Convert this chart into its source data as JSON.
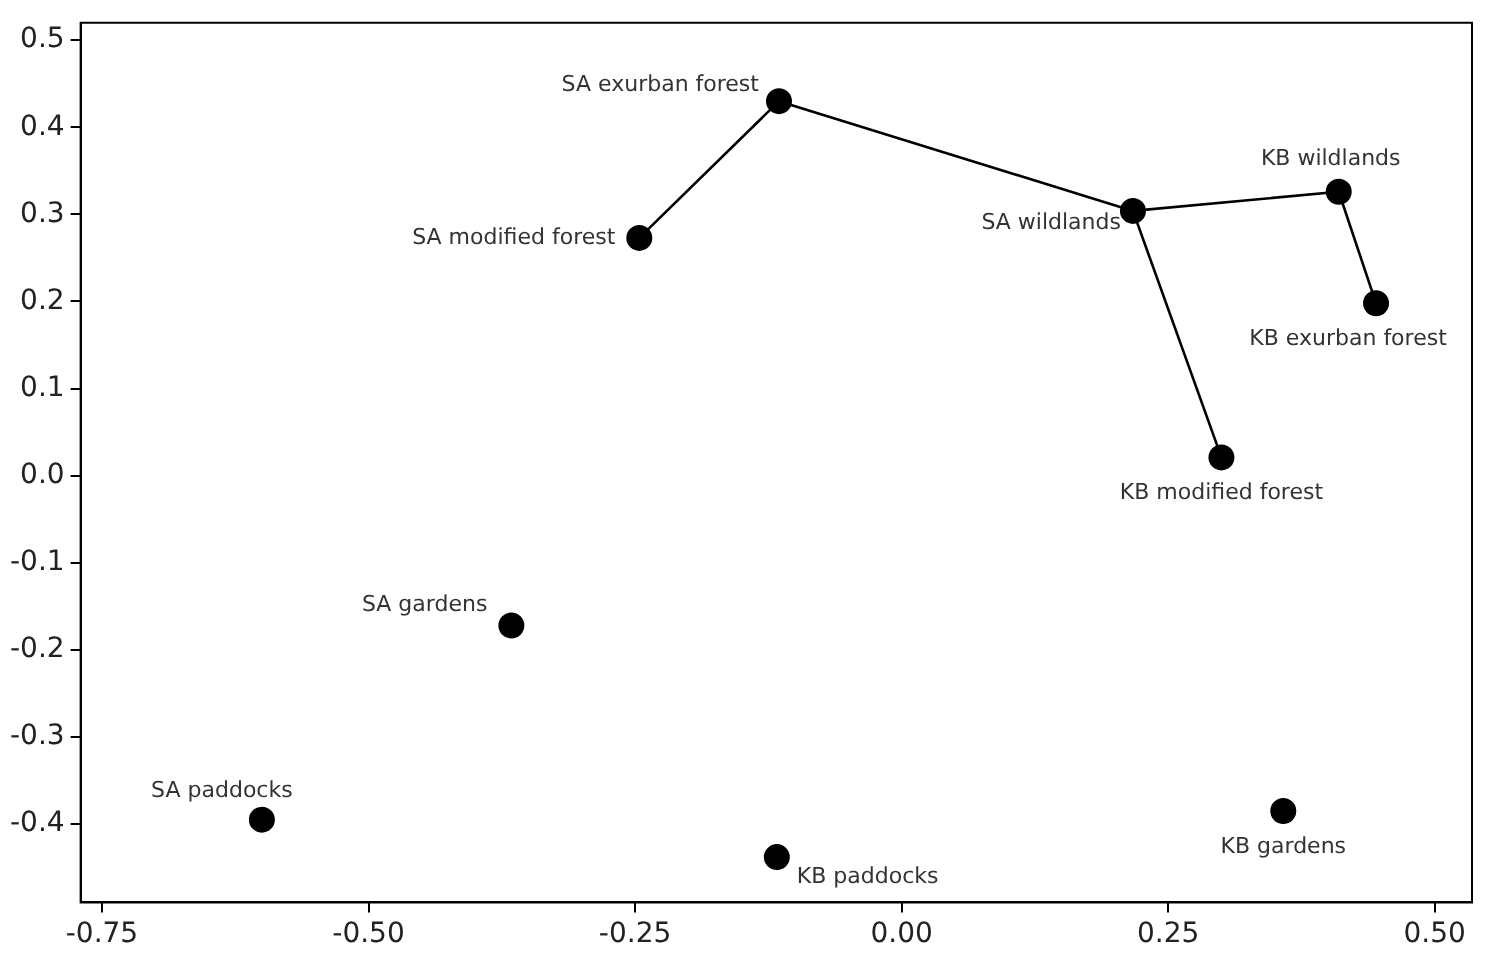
{
  "chart_data": {
    "type": "scatter",
    "xlim": [
      -0.77,
      0.535
    ],
    "ylim": [
      -0.49,
      0.52
    ],
    "xticks": [
      {
        "value": -0.75,
        "label": "-0.75"
      },
      {
        "value": -0.5,
        "label": "-0.50"
      },
      {
        "value": -0.25,
        "label": "-0.25"
      },
      {
        "value": 0,
        "label": "0.00"
      },
      {
        "value": 0.25,
        "label": "0.25"
      },
      {
        "value": 0.5,
        "label": "0.50"
      }
    ],
    "yticks": [
      {
        "value": -0.4,
        "label": "-0.4"
      },
      {
        "value": -0.3,
        "label": "-0.3"
      },
      {
        "value": -0.2,
        "label": "-0.2"
      },
      {
        "value": -0.1,
        "label": "-0.1"
      },
      {
        "value": 0,
        "label": "0.0"
      },
      {
        "value": 0.1,
        "label": "0.1"
      },
      {
        "value": 0.2,
        "label": "0.2"
      },
      {
        "value": 0.3,
        "label": "0.3"
      },
      {
        "value": 0.4,
        "label": "0.4"
      },
      {
        "value": 0.5,
        "label": "0.5"
      }
    ],
    "grid": false,
    "legend": false,
    "marker": "circle",
    "series": [
      {
        "type": "line",
        "color": "#000000",
        "marker": "none",
        "x": [
          -0.246,
          -0.115,
          0.217,
          0.41,
          0.445
        ],
        "values": [
          0.273,
          0.43,
          0.304,
          0.326,
          0.198
        ]
      },
      {
        "type": "line",
        "color": "#000000",
        "marker": "none",
        "x": [
          0.217,
          0.3
        ],
        "values": [
          0.304,
          0.021
        ]
      },
      {
        "type": "scatter",
        "color": "#000000",
        "x": [
          -0.115,
          -0.246,
          0.217,
          0.41,
          0.445,
          0.3,
          -0.366,
          -0.6,
          -0.117,
          0.358
        ],
        "values": [
          0.43,
          0.273,
          0.304,
          0.326,
          0.198,
          0.021,
          -0.172,
          -0.395,
          -0.438,
          -0.385
        ]
      }
    ],
    "annotations": [
      {
        "text": "SA exurban forest",
        "x": -0.115,
        "y": 0.43
      },
      {
        "text": "SA modified forest",
        "x": -0.246,
        "y": 0.273
      },
      {
        "text": "SA wildlands",
        "x": 0.217,
        "y": 0.304
      },
      {
        "text": "KB wildlands",
        "x": 0.41,
        "y": 0.326
      },
      {
        "text": "KB exurban forest",
        "x": 0.445,
        "y": 0.198
      },
      {
        "text": "KB modified forest",
        "x": 0.3,
        "y": 0.021
      },
      {
        "text": "SA gardens",
        "x": -0.366,
        "y": -0.172
      },
      {
        "text": "SA paddocks",
        "x": -0.6,
        "y": -0.395
      },
      {
        "text": "KB paddocks",
        "x": -0.117,
        "y": -0.438
      },
      {
        "text": "KB gardens",
        "x": 0.358,
        "y": -0.385
      }
    ]
  }
}
